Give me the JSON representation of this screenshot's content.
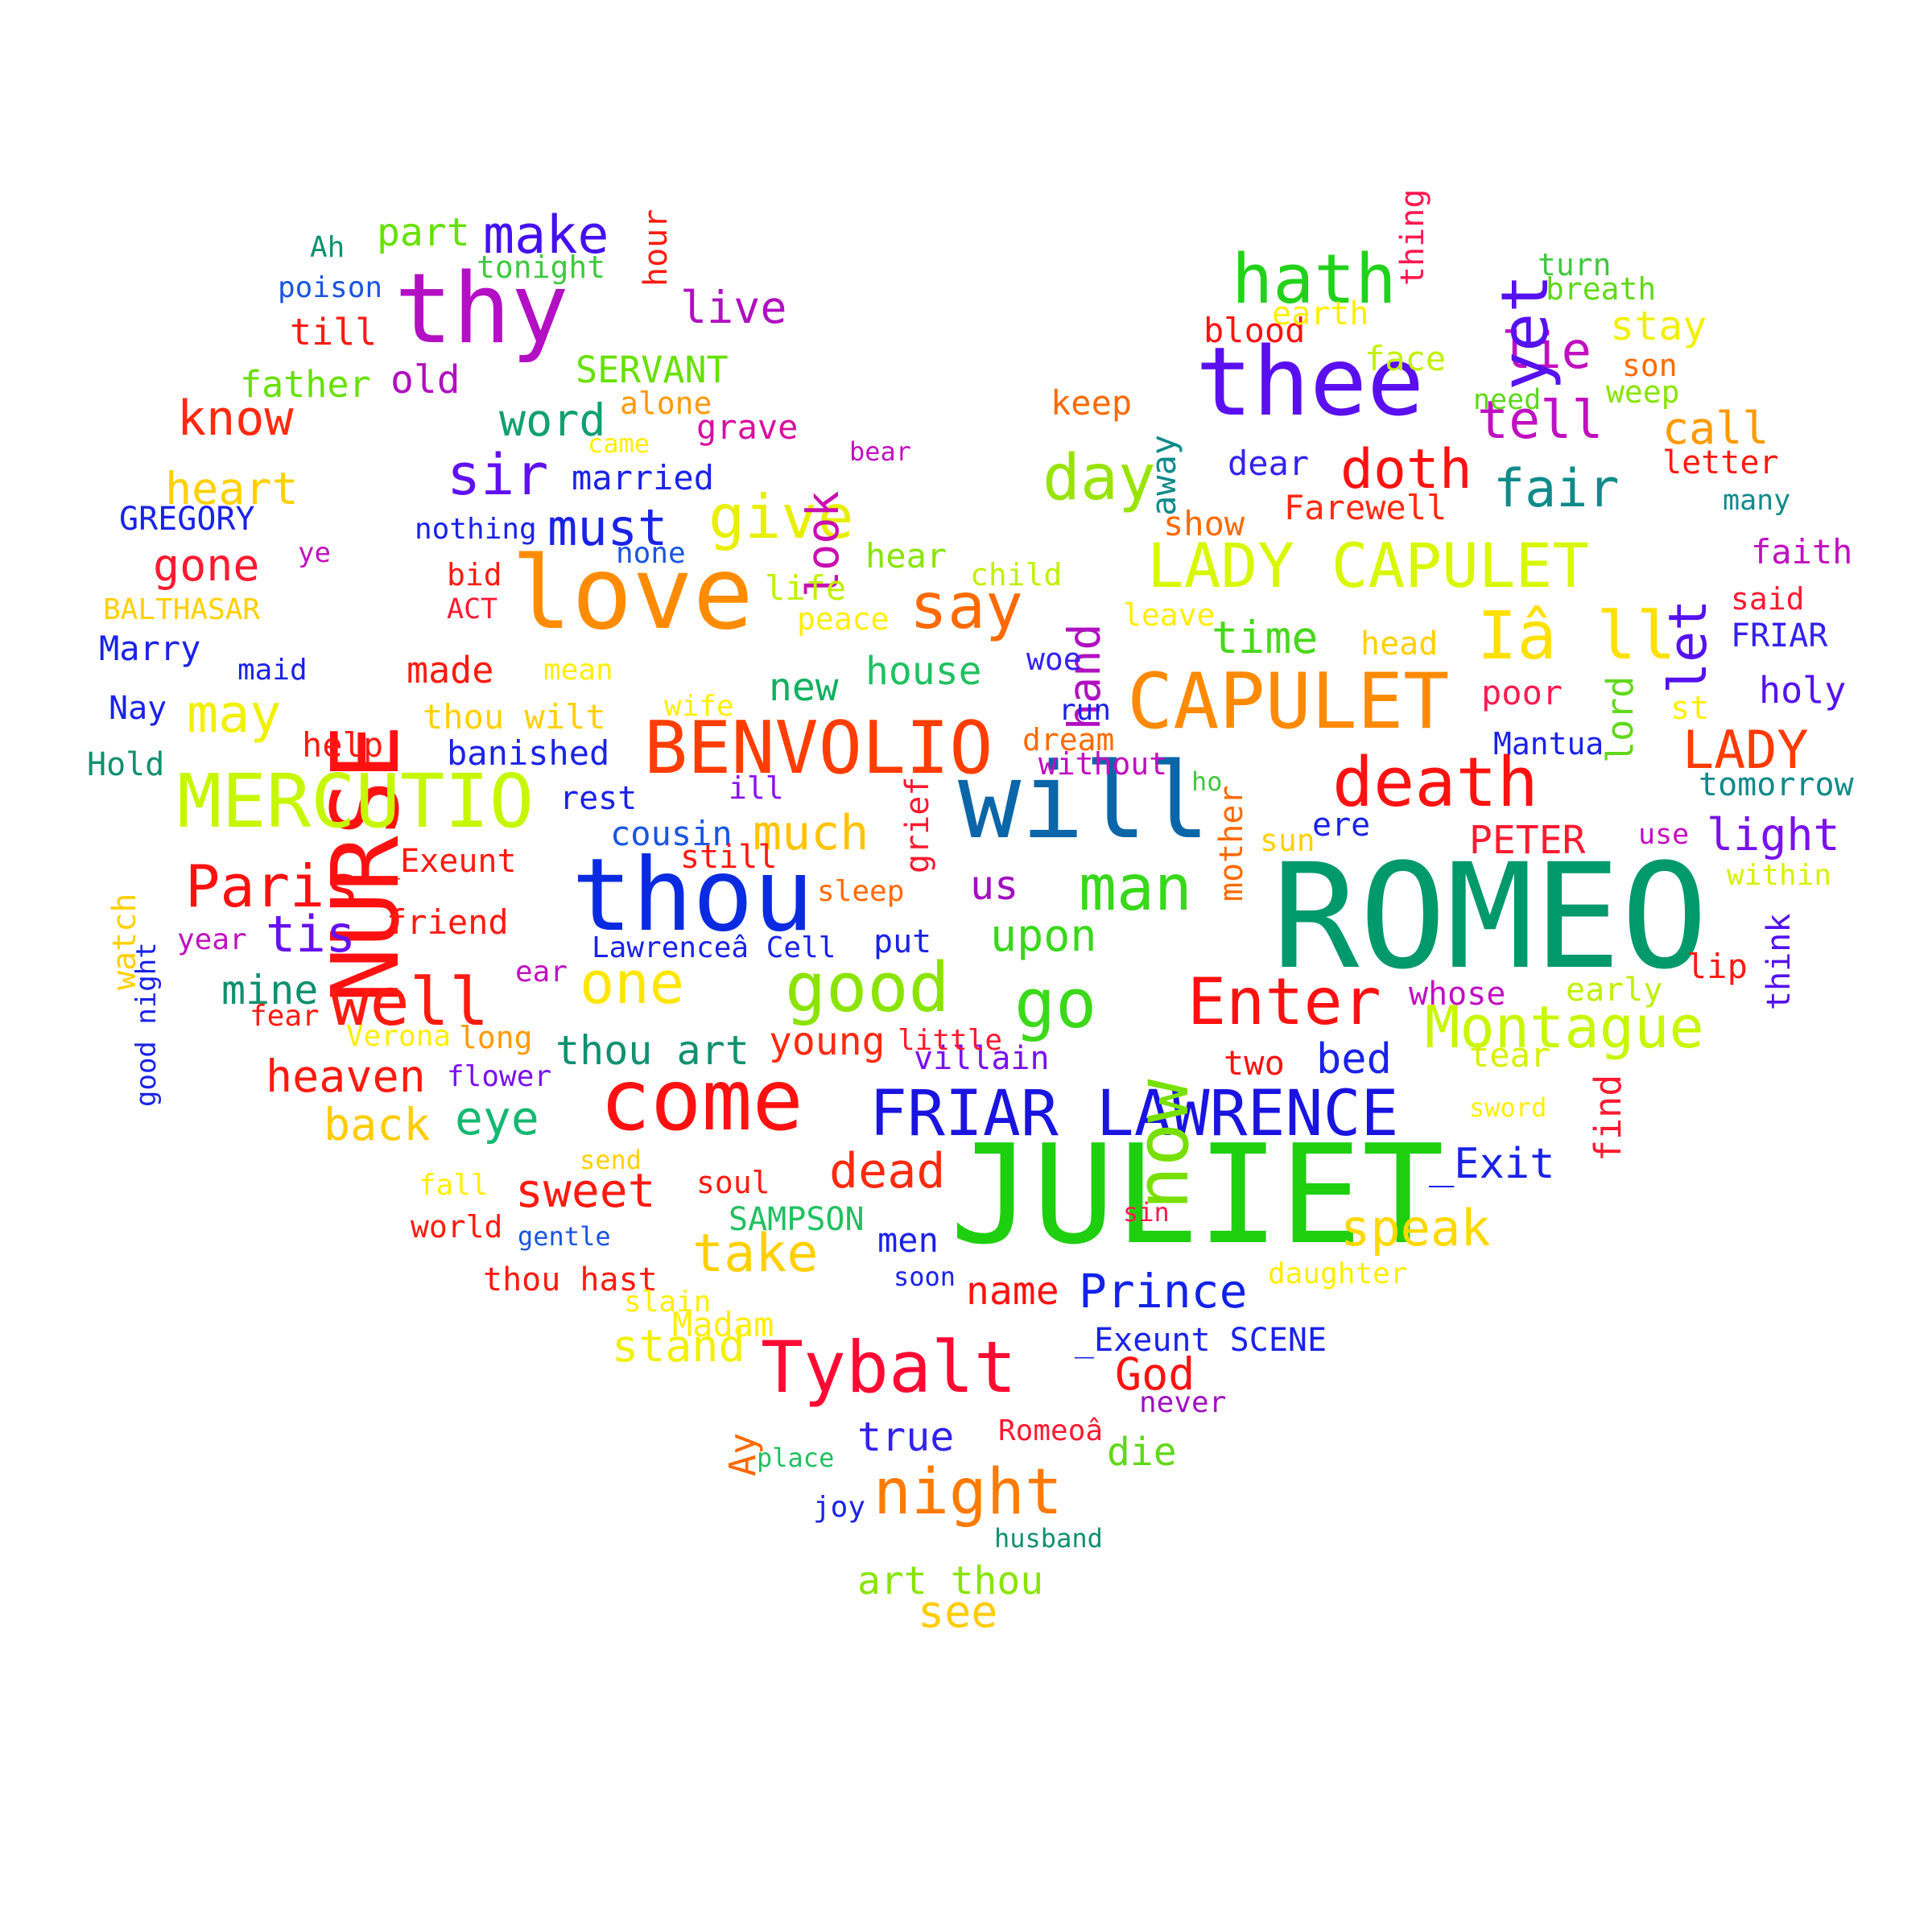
{
  "words": [
    {
      "text": "ROMEO",
      "color": "#00996b"
    },
    {
      "text": "JULIET",
      "color": "#1ecf0f"
    },
    {
      "text": "thee",
      "color": "#5a10ee"
    },
    {
      "text": "will",
      "color": "#0a66a8"
    },
    {
      "text": "thou",
      "color": "#0a2be0"
    },
    {
      "text": "love",
      "color": "#ff8c00"
    },
    {
      "text": "thy",
      "color": "#b30fc4"
    },
    {
      "text": "NURSE",
      "color": "#ff1111"
    },
    {
      "text": "CAPULET",
      "color": "#ff8a00"
    },
    {
      "text": "BENVOLIO",
      "color": "#ff3d00"
    },
    {
      "text": "MERCUTIO",
      "color": "#c6f700"
    },
    {
      "text": "LADY CAPULET",
      "color": "#d8f700"
    },
    {
      "text": "FRIAR LAWRENCE",
      "color": "#1a14e0"
    },
    {
      "text": "come",
      "color": "#ff1111"
    },
    {
      "text": "Tybalt",
      "color": "#ff0a33"
    },
    {
      "text": "death",
      "color": "#ff1111"
    },
    {
      "text": "hath",
      "color": "#22d21a"
    },
    {
      "text": "Iâ ll",
      "color": "#ffe000"
    },
    {
      "text": "good",
      "color": "#8ae400"
    },
    {
      "text": "Enter",
      "color": "#ff1111"
    },
    {
      "text": "Montague",
      "color": "#c8f700"
    },
    {
      "text": "night",
      "color": "#ff7a00"
    },
    {
      "text": "well",
      "color": "#ff1a10"
    },
    {
      "text": "Paris",
      "color": "#ff1111"
    },
    {
      "text": "one",
      "color": "#ffe600"
    },
    {
      "text": "go",
      "color": "#3cd81a"
    },
    {
      "text": "man",
      "color": "#38d81a"
    },
    {
      "text": "now",
      "color": "#77e000"
    },
    {
      "text": "say",
      "color": "#ff6a00"
    },
    {
      "text": "give",
      "color": "#e8f000"
    },
    {
      "text": "day",
      "color": "#98e400"
    },
    {
      "text": "doth",
      "color": "#ff1111"
    },
    {
      "text": "make",
      "color": "#4411ee"
    },
    {
      "text": "sir",
      "color": "#6011ee"
    },
    {
      "text": "much",
      "color": "#ffc400"
    },
    {
      "text": "dead",
      "color": "#ff2a10"
    },
    {
      "text": "Prince",
      "color": "#1222e8"
    },
    {
      "text": "take",
      "color": "#ffd000"
    },
    {
      "text": "speak",
      "color": "#ffd800"
    },
    {
      "text": "LADY",
      "color": "#ff3a00"
    },
    {
      "text": "fair",
      "color": "#108a8a"
    },
    {
      "text": "tell",
      "color": "#c010c0"
    },
    {
      "text": "lie",
      "color": "#c010c0"
    },
    {
      "text": "yet",
      "color": "#5511ee"
    },
    {
      "text": "let",
      "color": "#5511ee"
    },
    {
      "text": "must",
      "color": "#1a22e8"
    },
    {
      "text": "may",
      "color": "#f0f000"
    },
    {
      "text": "tis",
      "color": "#6611ee"
    },
    {
      "text": "light",
      "color": "#7a11ee"
    },
    {
      "text": "know",
      "color": "#ff2a10"
    },
    {
      "text": "heart",
      "color": "#ffd000"
    },
    {
      "text": "gone",
      "color": "#ff1a30"
    },
    {
      "text": "eye",
      "color": "#14b870"
    },
    {
      "text": "sweet",
      "color": "#ff1a10"
    },
    {
      "text": "upon",
      "color": "#38d81a"
    },
    {
      "text": "hand",
      "color": "#b010c0"
    },
    {
      "text": "time",
      "color": "#48d81a"
    },
    {
      "text": "house",
      "color": "#20c060"
    },
    {
      "text": "new",
      "color": "#10b060"
    },
    {
      "text": "word",
      "color": "#10a070"
    },
    {
      "text": "look",
      "color": "#c810b0"
    },
    {
      "text": "live",
      "color": "#b010c0"
    },
    {
      "text": "heaven",
      "color": "#ff1a10"
    },
    {
      "text": "back",
      "color": "#ffcc00"
    },
    {
      "text": "mine",
      "color": "#109070"
    },
    {
      "text": "thou art",
      "color": "#109070"
    },
    {
      "text": "young",
      "color": "#ff2a10"
    },
    {
      "text": "stand",
      "color": "#f0f000"
    },
    {
      "text": "see",
      "color": "#ffcc00"
    },
    {
      "text": "art thou",
      "color": "#88e400"
    },
    {
      "text": "God",
      "color": "#ff1111"
    },
    {
      "text": "name",
      "color": "#ff1111"
    },
    {
      "text": "true",
      "color": "#3322ee"
    },
    {
      "text": "die",
      "color": "#60d81a"
    },
    {
      "text": "call",
      "color": "#ff9a00"
    },
    {
      "text": "stay",
      "color": "#f0f000"
    },
    {
      "text": "old",
      "color": "#b010c0"
    },
    {
      "text": "part",
      "color": "#66e000"
    },
    {
      "text": "till",
      "color": "#ff1a10"
    },
    {
      "text": "father",
      "color": "#66e000"
    },
    {
      "text": "SERVANT",
      "color": "#66e000"
    },
    {
      "text": "_Exit",
      "color": "#1a22e8"
    },
    {
      "text": "find",
      "color": "#ff1a30"
    },
    {
      "text": "bed",
      "color": "#1a22e8"
    },
    {
      "text": "two",
      "color": "#ff1111"
    },
    {
      "text": "tear",
      "color": "#d8f000"
    },
    {
      "text": "lord",
      "color": "#60d81a"
    },
    {
      "text": "PETER",
      "color": "#ff1a30"
    },
    {
      "text": "us",
      "color": "#a010c0"
    },
    {
      "text": "friend",
      "color": "#ff1a10"
    },
    {
      "text": "made",
      "color": "#ff1a10"
    },
    {
      "text": "help",
      "color": "#ff1a10"
    },
    {
      "text": "banished",
      "color": "#1a22e8"
    },
    {
      "text": "thou wilt",
      "color": "#ffd000"
    },
    {
      "text": "face",
      "color": "#c0f000"
    },
    {
      "text": "keep",
      "color": "#ff6a00"
    },
    {
      "text": "away",
      "color": "#108a8a"
    },
    {
      "text": "dear",
      "color": "#3322ee"
    },
    {
      "text": "Farewell",
      "color": "#ff2a10"
    },
    {
      "text": "show",
      "color": "#ff6a00"
    },
    {
      "text": "blood",
      "color": "#ff1111"
    },
    {
      "text": "earth",
      "color": "#ffee00"
    },
    {
      "text": "thing",
      "color": "#ff1a50"
    },
    {
      "text": "hour",
      "color": "#ff1a10"
    },
    {
      "text": "grave",
      "color": "#d810a0"
    },
    {
      "text": "married",
      "color": "#1a22e8"
    },
    {
      "text": "cousin",
      "color": "#1a55e0"
    },
    {
      "text": "still",
      "color": "#ff1a10"
    },
    {
      "text": "rest",
      "color": "#1a22e8"
    },
    {
      "text": "ill",
      "color": "#8a11ee"
    },
    {
      "text": "grief",
      "color": "#ff1a30"
    },
    {
      "text": "mother",
      "color": "#ff6a00"
    },
    {
      "text": "sun",
      "color": "#ffd000"
    },
    {
      "text": "ere",
      "color": "#1a22e8"
    },
    {
      "text": "Mantua",
      "color": "#1a22e8"
    },
    {
      "text": "poor",
      "color": "#ff1a50"
    },
    {
      "text": "st",
      "color": "#ffee00"
    },
    {
      "text": "holy",
      "color": "#5511ee"
    },
    {
      "text": "tomorrow",
      "color": "#108a8a"
    },
    {
      "text": "use",
      "color": "#c010c0"
    },
    {
      "text": "within",
      "color": "#d8f000"
    },
    {
      "text": "think",
      "color": "#5511ee"
    },
    {
      "text": "lip",
      "color": "#ff1a10"
    },
    {
      "text": "early",
      "color": "#c0f000"
    },
    {
      "text": "whose",
      "color": "#c010c0"
    },
    {
      "text": "faith",
      "color": "#c010c0"
    },
    {
      "text": "said",
      "color": "#ff1a30"
    },
    {
      "text": "FRIAR",
      "color": "#3322ee"
    },
    {
      "text": "letter",
      "color": "#ff1a10"
    },
    {
      "text": "many",
      "color": "#108a8a"
    },
    {
      "text": "son",
      "color": "#ff6a00"
    },
    {
      "text": "weep",
      "color": "#88e400"
    },
    {
      "text": "need",
      "color": "#60d81a"
    },
    {
      "text": "breath",
      "color": "#60d81a"
    },
    {
      "text": "turn",
      "color": "#40c840"
    },
    {
      "text": "head",
      "color": "#ffd000"
    },
    {
      "text": "leave",
      "color": "#ffee00"
    },
    {
      "text": "child",
      "color": "#c0f000"
    },
    {
      "text": "woe",
      "color": "#3322ee"
    },
    {
      "text": "hear",
      "color": "#88e400"
    },
    {
      "text": "life",
      "color": "#c0f000"
    },
    {
      "text": "peace",
      "color": "#ffee00"
    },
    {
      "text": "run",
      "color": "#1a22e8"
    },
    {
      "text": "dream",
      "color": "#ff6a00"
    },
    {
      "text": "without",
      "color": "#c010c0"
    },
    {
      "text": "ho",
      "color": "#40c840"
    },
    {
      "text": "sleep",
      "color": "#ff6a00"
    },
    {
      "text": "put",
      "color": "#1a22e8"
    },
    {
      "text": "villain",
      "color": "#7a11ee"
    },
    {
      "text": "little",
      "color": "#ff1a30"
    },
    {
      "text": "Lawrenceâ Cell",
      "color": "#1a22e8"
    },
    {
      "text": "ear",
      "color": "#c010c0"
    },
    {
      "text": "long",
      "color": "#ff9a00"
    },
    {
      "text": "Verona",
      "color": "#ffee00"
    },
    {
      "text": "fear",
      "color": "#ff1a10"
    },
    {
      "text": "flower",
      "color": "#7a11ee"
    },
    {
      "text": "year",
      "color": "#c010c0"
    },
    {
      "text": "_Exeunt",
      "color": "#ff1a10"
    },
    {
      "text": "watch",
      "color": "#ffd000"
    },
    {
      "text": "good night",
      "color": "#1a22e8"
    },
    {
      "text": "Hold",
      "color": "#109070"
    },
    {
      "text": "Nay",
      "color": "#1a22e8"
    },
    {
      "text": "Marry",
      "color": "#1a22e8"
    },
    {
      "text": "maid",
      "color": "#1a22e8"
    },
    {
      "text": "BALTHASAR",
      "color": "#ffd000"
    },
    {
      "text": "ACT",
      "color": "#ff1a30"
    },
    {
      "text": "bid",
      "color": "#ff1a10"
    },
    {
      "text": "ye",
      "color": "#c010c0"
    },
    {
      "text": "GREGORY",
      "color": "#1a22e8"
    },
    {
      "text": "nothing",
      "color": "#1a22e8"
    },
    {
      "text": "none",
      "color": "#1a55e0"
    },
    {
      "text": "came",
      "color": "#ffee00"
    },
    {
      "text": "alone",
      "color": "#ff9a00"
    },
    {
      "text": "bear",
      "color": "#c010c0"
    },
    {
      "text": "tonight",
      "color": "#40c840"
    },
    {
      "text": "Ah",
      "color": "#109070"
    },
    {
      "text": "poison",
      "color": "#1a55e0"
    },
    {
      "text": "mean",
      "color": "#ffee00"
    },
    {
      "text": "wife",
      "color": "#ffee00"
    },
    {
      "text": "send",
      "color": "#ffd000"
    },
    {
      "text": "fall",
      "color": "#ffee00"
    },
    {
      "text": "world",
      "color": "#ff1a10"
    },
    {
      "text": "gentle",
      "color": "#1a55e0"
    },
    {
      "text": "soul",
      "color": "#ff1a10"
    },
    {
      "text": "SAMPSON",
      "color": "#20c060"
    },
    {
      "text": "thou hast",
      "color": "#ff1a10"
    },
    {
      "text": "men",
      "color": "#1a22e8"
    },
    {
      "text": "soon",
      "color": "#1a22e8"
    },
    {
      "text": "slain",
      "color": "#ffee00"
    },
    {
      "text": "Madam",
      "color": "#ffee00"
    },
    {
      "text": "daughter",
      "color": "#ffee00"
    },
    {
      "text": "_Exeunt SCENE",
      "color": "#1a22e8"
    },
    {
      "text": "sin",
      "color": "#ff1a50"
    },
    {
      "text": "never",
      "color": "#a010c0"
    },
    {
      "text": "Romeoâ",
      "color": "#ff1a30"
    },
    {
      "text": "Ay",
      "color": "#ff6a00"
    },
    {
      "text": "place",
      "color": "#20c060"
    },
    {
      "text": "joy",
      "color": "#1a22e8"
    },
    {
      "text": "husband",
      "color": "#109070"
    },
    {
      "text": "sword",
      "color": "#ffee00"
    }
  ]
}
